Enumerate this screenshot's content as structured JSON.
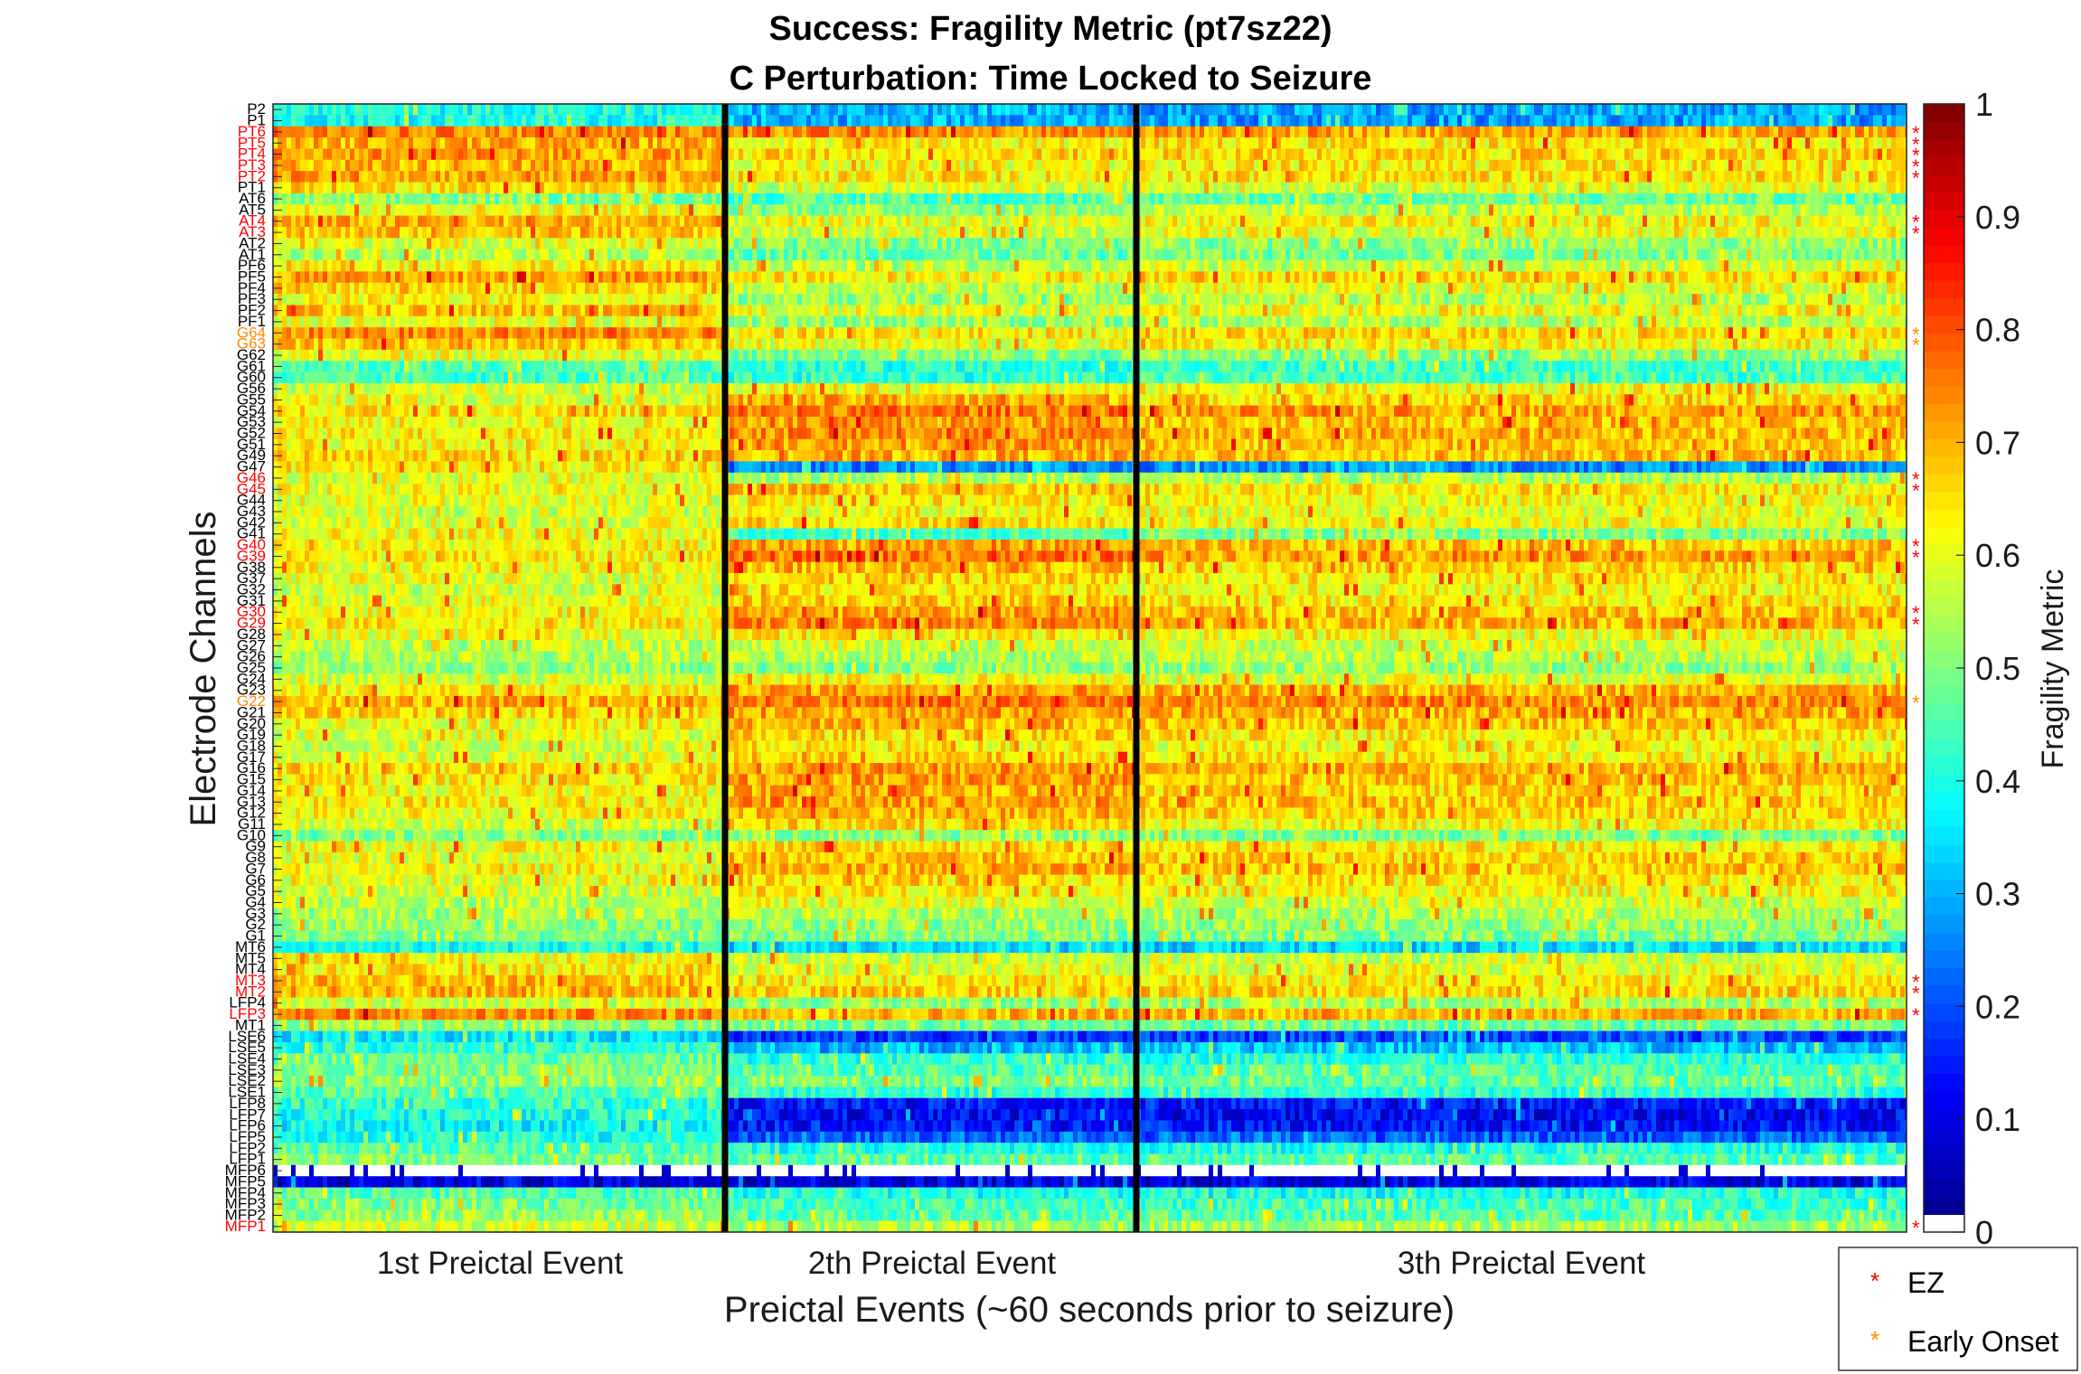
{
  "chart_data": {
    "type": "heatmap",
    "title_lines": [
      "Success: Fragility Metric (pt7sz22)",
      "C Perturbation:  Time Locked to Seizure"
    ],
    "xlabel": "Preictal Events (~60 seconds prior to seizure)",
    "ylabel": "Electrode Channels",
    "colorbar": {
      "label": "Fragility Metric",
      "range": [
        0,
        1
      ],
      "ticks": [
        "0",
        "0.1",
        "0.2",
        "0.3",
        "0.4",
        "0.5",
        "0.6",
        "0.7",
        "0.8",
        "0.9",
        "1"
      ],
      "colormap": "jet"
    },
    "events": [
      "1st Preictal Event",
      "2th Preictal Event",
      "3th Preictal Event"
    ],
    "channels": [
      {
        "name": "P2",
        "label": "normal",
        "levels": [
          0.4,
          0.3,
          0.28
        ]
      },
      {
        "name": "P1",
        "label": "normal",
        "levels": [
          0.4,
          0.3,
          0.28
        ]
      },
      {
        "name": "PT6",
        "label": "ez",
        "levels": [
          0.74,
          0.74,
          0.72
        ]
      },
      {
        "name": "PT5",
        "label": "ez",
        "levels": [
          0.7,
          0.62,
          0.64
        ]
      },
      {
        "name": "PT4",
        "label": "ez",
        "levels": [
          0.72,
          0.66,
          0.66
        ]
      },
      {
        "name": "PT3",
        "label": "ez",
        "levels": [
          0.7,
          0.62,
          0.64
        ]
      },
      {
        "name": "PT2",
        "label": "ez",
        "levels": [
          0.72,
          0.64,
          0.65
        ]
      },
      {
        "name": "PT1",
        "label": "normal",
        "levels": [
          0.66,
          0.58,
          0.6
        ]
      },
      {
        "name": "AT6",
        "label": "normal",
        "levels": [
          0.5,
          0.45,
          0.48
        ]
      },
      {
        "name": "AT5",
        "label": "normal",
        "levels": [
          0.62,
          0.52,
          0.56
        ]
      },
      {
        "name": "AT4",
        "label": "ez",
        "levels": [
          0.7,
          0.6,
          0.62
        ]
      },
      {
        "name": "AT3",
        "label": "ez",
        "levels": [
          0.68,
          0.58,
          0.6
        ]
      },
      {
        "name": "AT2",
        "label": "normal",
        "levels": [
          0.6,
          0.5,
          0.52
        ]
      },
      {
        "name": "AT1",
        "label": "normal",
        "levels": [
          0.55,
          0.48,
          0.5
        ]
      },
      {
        "name": "PF6",
        "label": "normal",
        "levels": [
          0.64,
          0.55,
          0.58
        ]
      },
      {
        "name": "PF5",
        "label": "normal",
        "levels": [
          0.72,
          0.64,
          0.66
        ]
      },
      {
        "name": "PF4",
        "label": "normal",
        "levels": [
          0.66,
          0.56,
          0.6
        ]
      },
      {
        "name": "PF3",
        "label": "normal",
        "levels": [
          0.62,
          0.52,
          0.55
        ]
      },
      {
        "name": "PF2",
        "label": "normal",
        "levels": [
          0.68,
          0.6,
          0.62
        ]
      },
      {
        "name": "PF1",
        "label": "normal",
        "levels": [
          0.6,
          0.52,
          0.55
        ]
      },
      {
        "name": "G64",
        "label": "early_onset",
        "levels": [
          0.74,
          0.64,
          0.66
        ]
      },
      {
        "name": "G63",
        "label": "early_onset",
        "levels": [
          0.68,
          0.6,
          0.62
        ]
      },
      {
        "name": "G62",
        "label": "normal",
        "levels": [
          0.6,
          0.5,
          0.52
        ]
      },
      {
        "name": "G61",
        "label": "normal",
        "levels": [
          0.46,
          0.42,
          0.44
        ]
      },
      {
        "name": "G60",
        "label": "normal",
        "levels": [
          0.44,
          0.42,
          0.44
        ]
      },
      {
        "name": "G56",
        "label": "normal",
        "levels": [
          0.58,
          0.62,
          0.62
        ]
      },
      {
        "name": "G55",
        "label": "normal",
        "levels": [
          0.6,
          0.7,
          0.66
        ]
      },
      {
        "name": "G54",
        "label": "normal",
        "levels": [
          0.66,
          0.76,
          0.72
        ]
      },
      {
        "name": "G53",
        "label": "normal",
        "levels": [
          0.62,
          0.72,
          0.68
        ]
      },
      {
        "name": "G52",
        "label": "normal",
        "levels": [
          0.64,
          0.74,
          0.7
        ]
      },
      {
        "name": "G51",
        "label": "normal",
        "levels": [
          0.62,
          0.72,
          0.68
        ]
      },
      {
        "name": "G49",
        "label": "normal",
        "levels": [
          0.66,
          0.7,
          0.68
        ]
      },
      {
        "name": "G47",
        "label": "normal",
        "levels": [
          0.64,
          0.26,
          0.26
        ]
      },
      {
        "name": "G46",
        "label": "ez",
        "levels": [
          0.6,
          0.55,
          0.55
        ]
      },
      {
        "name": "G45",
        "label": "ez",
        "levels": [
          0.62,
          0.68,
          0.64
        ]
      },
      {
        "name": "G44",
        "label": "normal",
        "levels": [
          0.6,
          0.64,
          0.62
        ]
      },
      {
        "name": "G43",
        "label": "normal",
        "levels": [
          0.58,
          0.62,
          0.6
        ]
      },
      {
        "name": "G42",
        "label": "normal",
        "levels": [
          0.6,
          0.66,
          0.62
        ]
      },
      {
        "name": "G41",
        "label": "normal",
        "levels": [
          0.62,
          0.44,
          0.5
        ]
      },
      {
        "name": "G40",
        "label": "ez",
        "levels": [
          0.62,
          0.72,
          0.68
        ]
      },
      {
        "name": "G39",
        "label": "ez",
        "levels": [
          0.64,
          0.76,
          0.72
        ]
      },
      {
        "name": "G38",
        "label": "normal",
        "levels": [
          0.62,
          0.7,
          0.66
        ]
      },
      {
        "name": "G37",
        "label": "normal",
        "levels": [
          0.6,
          0.66,
          0.64
        ]
      },
      {
        "name": "G32",
        "label": "normal",
        "levels": [
          0.58,
          0.64,
          0.62
        ]
      },
      {
        "name": "G31",
        "label": "normal",
        "levels": [
          0.6,
          0.68,
          0.64
        ]
      },
      {
        "name": "G30",
        "label": "ez",
        "levels": [
          0.62,
          0.72,
          0.68
        ]
      },
      {
        "name": "G29",
        "label": "ez",
        "levels": [
          0.64,
          0.74,
          0.7
        ]
      },
      {
        "name": "G28",
        "label": "normal",
        "levels": [
          0.6,
          0.64,
          0.62
        ]
      },
      {
        "name": "G27",
        "label": "normal",
        "levels": [
          0.56,
          0.58,
          0.58
        ]
      },
      {
        "name": "G26",
        "label": "normal",
        "levels": [
          0.54,
          0.55,
          0.56
        ]
      },
      {
        "name": "G25",
        "label": "normal",
        "levels": [
          0.52,
          0.5,
          0.52
        ]
      },
      {
        "name": "G24",
        "label": "normal",
        "levels": [
          0.58,
          0.62,
          0.6
        ]
      },
      {
        "name": "G23",
        "label": "normal",
        "levels": [
          0.64,
          0.72,
          0.7
        ]
      },
      {
        "name": "G22",
        "label": "early_onset",
        "levels": [
          0.7,
          0.76,
          0.74
        ]
      },
      {
        "name": "G21",
        "label": "normal",
        "levels": [
          0.66,
          0.72,
          0.7
        ]
      },
      {
        "name": "G20",
        "label": "normal",
        "levels": [
          0.62,
          0.7,
          0.68
        ]
      },
      {
        "name": "G19",
        "label": "normal",
        "levels": [
          0.6,
          0.66,
          0.64
        ]
      },
      {
        "name": "G18",
        "label": "normal",
        "levels": [
          0.58,
          0.64,
          0.62
        ]
      },
      {
        "name": "G17",
        "label": "normal",
        "levels": [
          0.6,
          0.66,
          0.64
        ]
      },
      {
        "name": "G16",
        "label": "normal",
        "levels": [
          0.66,
          0.72,
          0.7
        ]
      },
      {
        "name": "G15",
        "label": "normal",
        "levels": [
          0.64,
          0.72,
          0.68
        ]
      },
      {
        "name": "G14",
        "label": "normal",
        "levels": [
          0.62,
          0.7,
          0.66
        ]
      },
      {
        "name": "G13",
        "label": "normal",
        "levels": [
          0.64,
          0.72,
          0.68
        ]
      },
      {
        "name": "G12",
        "label": "normal",
        "levels": [
          0.62,
          0.7,
          0.66
        ]
      },
      {
        "name": "G11",
        "label": "normal",
        "levels": [
          0.58,
          0.66,
          0.62
        ]
      },
      {
        "name": "G10",
        "label": "normal",
        "levels": [
          0.5,
          0.52,
          0.5
        ]
      },
      {
        "name": "G9",
        "label": "normal",
        "levels": [
          0.62,
          0.66,
          0.64
        ]
      },
      {
        "name": "G8",
        "label": "normal",
        "levels": [
          0.6,
          0.68,
          0.66
        ]
      },
      {
        "name": "G7",
        "label": "normal",
        "levels": [
          0.62,
          0.7,
          0.68
        ]
      },
      {
        "name": "G6",
        "label": "normal",
        "levels": [
          0.6,
          0.66,
          0.64
        ]
      },
      {
        "name": "G5",
        "label": "normal",
        "levels": [
          0.58,
          0.64,
          0.62
        ]
      },
      {
        "name": "G4",
        "label": "normal",
        "levels": [
          0.56,
          0.6,
          0.58
        ]
      },
      {
        "name": "G3",
        "label": "normal",
        "levels": [
          0.54,
          0.55,
          0.55
        ]
      },
      {
        "name": "G2",
        "label": "normal",
        "levels": [
          0.52,
          0.52,
          0.52
        ]
      },
      {
        "name": "G1",
        "label": "normal",
        "levels": [
          0.5,
          0.5,
          0.5
        ]
      },
      {
        "name": "MT6",
        "label": "normal",
        "levels": [
          0.4,
          0.34,
          0.34
        ]
      },
      {
        "name": "MT5",
        "label": "normal",
        "levels": [
          0.62,
          0.58,
          0.58
        ]
      },
      {
        "name": "MT4",
        "label": "normal",
        "levels": [
          0.64,
          0.6,
          0.6
        ]
      },
      {
        "name": "MT3",
        "label": "ez",
        "levels": [
          0.68,
          0.64,
          0.64
        ]
      },
      {
        "name": "MT2",
        "label": "ez",
        "levels": [
          0.7,
          0.66,
          0.66
        ]
      },
      {
        "name": "LFP4",
        "label": "normal",
        "levels": [
          0.58,
          0.52,
          0.54
        ]
      },
      {
        "name": "LFP3",
        "label": "ez",
        "levels": [
          0.74,
          0.7,
          0.7
        ]
      },
      {
        "name": "MT1",
        "label": "normal",
        "levels": [
          0.52,
          0.48,
          0.48
        ]
      },
      {
        "name": "LSE6",
        "label": "normal",
        "levels": [
          0.36,
          0.18,
          0.2
        ]
      },
      {
        "name": "LSE5",
        "label": "normal",
        "levels": [
          0.42,
          0.3,
          0.32
        ]
      },
      {
        "name": "LSE4",
        "label": "normal",
        "levels": [
          0.48,
          0.42,
          0.42
        ]
      },
      {
        "name": "LSE3",
        "label": "normal",
        "levels": [
          0.5,
          0.46,
          0.46
        ]
      },
      {
        "name": "LSE2",
        "label": "normal",
        "levels": [
          0.52,
          0.5,
          0.48
        ]
      },
      {
        "name": "LSE1",
        "label": "normal",
        "levels": [
          0.46,
          0.42,
          0.42
        ]
      },
      {
        "name": "LFP8",
        "label": "normal",
        "levels": [
          0.42,
          0.14,
          0.14
        ]
      },
      {
        "name": "LFP7",
        "label": "normal",
        "levels": [
          0.4,
          0.12,
          0.12
        ]
      },
      {
        "name": "LFP6",
        "label": "normal",
        "levels": [
          0.38,
          0.14,
          0.14
        ]
      },
      {
        "name": "LFP5",
        "label": "normal",
        "levels": [
          0.4,
          0.22,
          0.22
        ]
      },
      {
        "name": "LFP2",
        "label": "normal",
        "levels": [
          0.46,
          0.4,
          0.4
        ]
      },
      {
        "name": "LFP1",
        "label": "normal",
        "levels": [
          0.5,
          0.46,
          0.46
        ]
      },
      {
        "name": "MFP6",
        "label": "normal",
        "levels": [
          -1,
          -1,
          -1
        ]
      },
      {
        "name": "MFP5",
        "label": "normal",
        "levels": [
          0.1,
          0.1,
          0.1
        ]
      },
      {
        "name": "MFP4",
        "label": "normal",
        "levels": [
          0.46,
          0.4,
          0.4
        ]
      },
      {
        "name": "MFP3",
        "label": "normal",
        "levels": [
          0.5,
          0.44,
          0.44
        ]
      },
      {
        "name": "MFP2",
        "label": "normal",
        "levels": [
          0.52,
          0.46,
          0.46
        ]
      },
      {
        "name": "MFP1",
        "label": "ez",
        "levels": [
          0.58,
          0.54,
          0.54
        ]
      }
    ],
    "legend": {
      "placement": "bottom-right",
      "entries": [
        {
          "label": "EZ",
          "marker": "*",
          "color": "#ff0000"
        },
        {
          "label": "Early Onset",
          "marker": "*",
          "color": "#ff8c00"
        }
      ]
    },
    "label_colors": {
      "normal": "#000000",
      "ez": "#ff0000",
      "early_onset": "#ff8c00"
    },
    "event_separator_color": "#000000"
  }
}
